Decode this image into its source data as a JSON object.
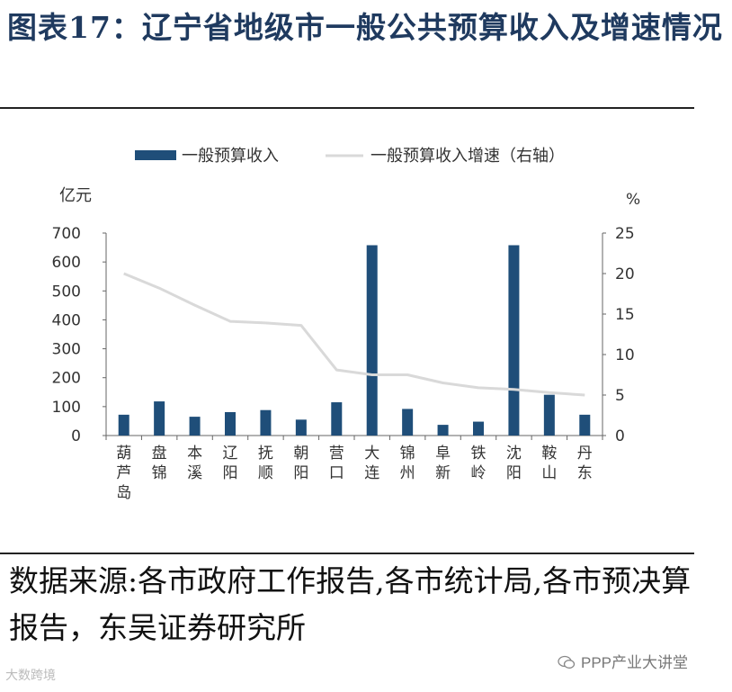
{
  "title": "图表17：辽宁省地级市一般公共预算收入及增速情况",
  "source_note": "数据来源:各市政府工作报告,各市统计局,各市预决算报告，东吴证券研究所",
  "watermark_left": "大数跨境",
  "watermark_right": "PPP产业大讲堂",
  "chart_data": {
    "type": "bar",
    "categories": [
      "葫芦岛",
      "盘锦",
      "本溪",
      "辽阳",
      "抚顺",
      "朝阳",
      "营口",
      "大连",
      "锦州",
      "阜新",
      "铁岭",
      "沈阳",
      "鞍山",
      "丹东"
    ],
    "series": [
      {
        "name": "一般预算收入",
        "type": "bar",
        "axis": "left",
        "values": [
          72,
          118,
          65,
          81,
          88,
          55,
          115,
          658,
          92,
          37,
          48,
          658,
          141,
          72
        ],
        "color": "#1f4e79"
      },
      {
        "name": "一般预算收入增速（右轴）",
        "type": "line",
        "axis": "right",
        "values": [
          20,
          18.2,
          16.1,
          14.1,
          13.9,
          13.6,
          8.1,
          7.5,
          7.5,
          6.5,
          5.9,
          5.7,
          5.3,
          5.0
        ],
        "color": "#d9d9d9"
      }
    ],
    "y_left": {
      "label": "亿元",
      "min": 0,
      "max": 700,
      "ticks": [
        0,
        100,
        200,
        300,
        400,
        500,
        600,
        700
      ]
    },
    "y_right": {
      "label": "%",
      "min": 0,
      "max": 25,
      "ticks": [
        0,
        5,
        10,
        15,
        20,
        25
      ]
    },
    "legend_position": "top"
  }
}
